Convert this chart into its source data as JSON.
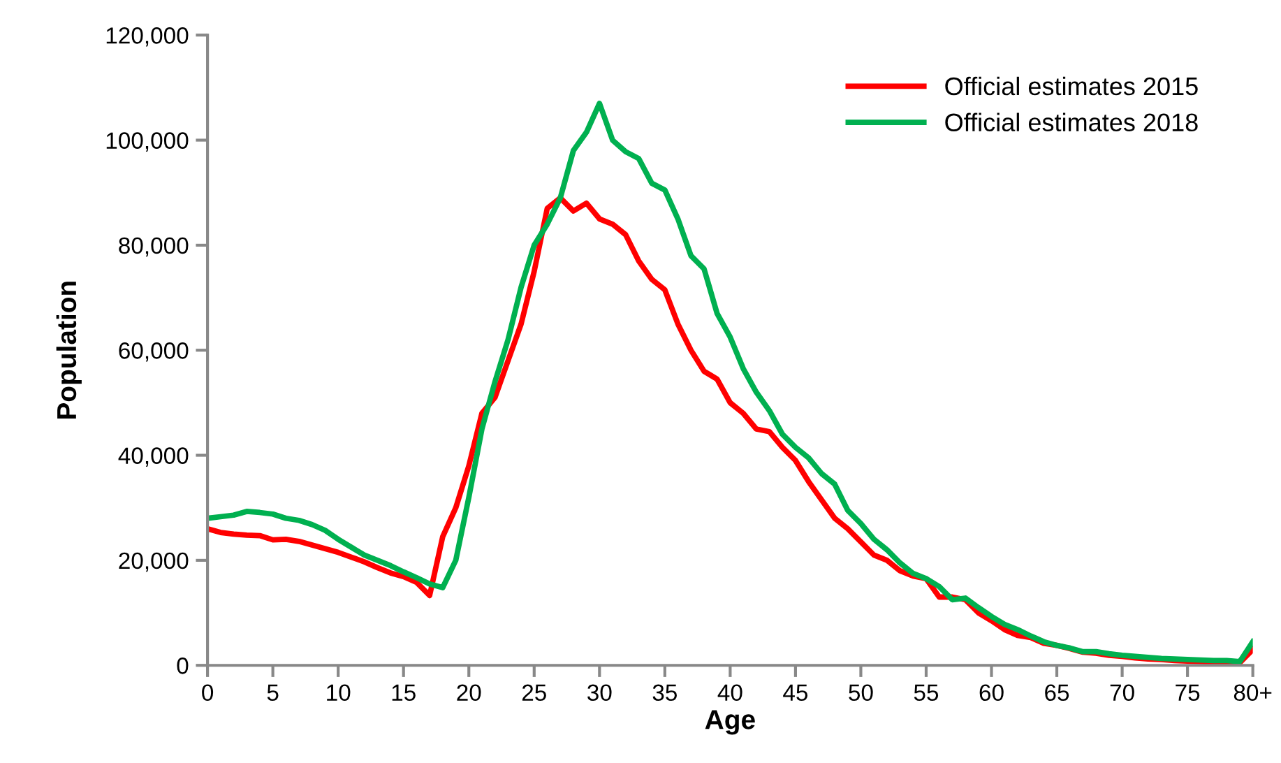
{
  "chart_data": {
    "type": "line",
    "xlabel": "Age",
    "ylabel": "Population",
    "x": [
      0,
      1,
      2,
      3,
      4,
      5,
      6,
      7,
      8,
      9,
      10,
      11,
      12,
      13,
      14,
      15,
      16,
      17,
      18,
      19,
      20,
      21,
      22,
      23,
      24,
      25,
      26,
      27,
      28,
      29,
      30,
      31,
      32,
      33,
      34,
      35,
      36,
      37,
      38,
      39,
      40,
      41,
      42,
      43,
      44,
      45,
      46,
      47,
      48,
      49,
      50,
      51,
      52,
      53,
      54,
      55,
      56,
      57,
      58,
      59,
      60,
      61,
      62,
      63,
      64,
      65,
      66,
      67,
      68,
      69,
      70,
      71,
      72,
      73,
      74,
      75,
      76,
      77,
      78,
      79,
      80
    ],
    "series": [
      {
        "name": "Official estimates 2015",
        "color": "#ff0000",
        "values": [
          26000,
          25300,
          25000,
          24800,
          24700,
          23900,
          24000,
          23600,
          22900,
          22200,
          21500,
          20600,
          19700,
          18600,
          17600,
          16900,
          15800,
          13300,
          24500,
          30000,
          38000,
          48000,
          51000,
          58000,
          65000,
          75000,
          87000,
          89000,
          86500,
          88000,
          85000,
          84000,
          82000,
          77000,
          73500,
          71500,
          65000,
          60000,
          56000,
          54500,
          50000,
          48000,
          45000,
          44500,
          41500,
          39000,
          35000,
          31500,
          28000,
          26000,
          23500,
          21000,
          20000,
          18000,
          17000,
          16500,
          13000,
          13000,
          12500,
          10000,
          8500,
          6800,
          5700,
          5300,
          4200,
          3800,
          3200,
          2500,
          2300,
          1900,
          1700,
          1400,
          1200,
          1100,
          900,
          800,
          700,
          600,
          500,
          500,
          3000
        ]
      },
      {
        "name": "Official estimates 2018",
        "color": "#00b050",
        "values": [
          28000,
          28300,
          28600,
          29300,
          29100,
          28800,
          28000,
          27600,
          26800,
          25700,
          24000,
          22500,
          21000,
          20000,
          19000,
          17800,
          16700,
          15500,
          14800,
          20000,
          32000,
          45000,
          54000,
          62000,
          72000,
          80000,
          84000,
          89000,
          98000,
          101500,
          107000,
          100000,
          97800,
          96500,
          91800,
          90500,
          85000,
          78000,
          75500,
          67000,
          62500,
          56500,
          52000,
          48500,
          44000,
          41500,
          39500,
          36500,
          34500,
          29500,
          27000,
          24000,
          22000,
          19500,
          17500,
          16500,
          15000,
          12500,
          12800,
          11000,
          9300,
          7800,
          6800,
          5600,
          4500,
          3800,
          3300,
          2600,
          2600,
          2200,
          1900,
          1700,
          1500,
          1300,
          1200,
          1100,
          1000,
          900,
          900,
          700,
          4500
        ]
      }
    ],
    "xlim": [
      0,
      80
    ],
    "xticks": [
      0,
      5,
      10,
      15,
      20,
      25,
      30,
      35,
      40,
      45,
      50,
      55,
      60,
      65,
      70,
      75,
      {
        "value": 80,
        "label": "80+"
      }
    ],
    "ylim": [
      0,
      120000
    ],
    "yticks": [
      {
        "value": 0,
        "label": "0"
      },
      {
        "value": 20000,
        "label": "20,000"
      },
      {
        "value": 40000,
        "label": "40,000"
      },
      {
        "value": 60000,
        "label": "60,000"
      },
      {
        "value": 80000,
        "label": "80,000"
      },
      {
        "value": 100000,
        "label": "100,000"
      },
      {
        "value": 120000,
        "label": "120,000"
      }
    ],
    "grid": false,
    "legend": "top right",
    "marker": "none",
    "line_style": "solid"
  }
}
